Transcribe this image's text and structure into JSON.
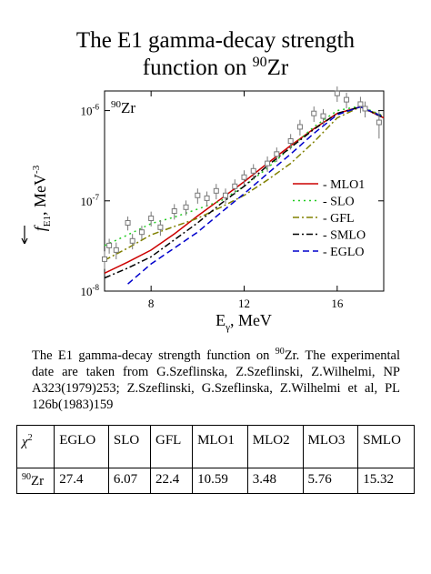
{
  "title": {
    "line1": "The E1 gamma-decay strength",
    "line2": "function on ",
    "sup": "90",
    "tail": "Zr"
  },
  "chart_data": {
    "type": "line",
    "annotation": {
      "sup": "90",
      "text": "Zr"
    },
    "x_label": {
      "text": "E",
      "sub": "γ",
      "tail": ", MeV"
    },
    "y_label": {
      "f": "f",
      "sub": "E1",
      "text": ", MeV",
      "sup": "-3"
    },
    "x": [
      6,
      7,
      8,
      9,
      10,
      11,
      12,
      13,
      14,
      15,
      16,
      17,
      18
    ],
    "series": [
      {
        "name": "- MLO1",
        "color": "#cc0000",
        "linestyle": "solid",
        "values": [
          1.58e-08,
          2.1e-08,
          2.85e-08,
          4.3e-08,
          6.8e-08,
          1.05e-07,
          1.63e-07,
          2.6e-07,
          4.1e-07,
          6.3e-07,
          9.3e-07,
          1.1e-06,
          8.3e-07
        ]
      },
      {
        "name": "- SLO",
        "color": "#22cc22",
        "linestyle": "dotted",
        "values": [
          3.2e-08,
          4.2e-08,
          5.6e-08,
          6.6e-08,
          8.1e-08,
          1e-07,
          1.45e-07,
          2.3e-07,
          3.9e-07,
          6.6e-07,
          1e-06,
          1.12e-06,
          8.7e-07
        ]
      },
      {
        "name": "- GFL",
        "color": "#808000",
        "linestyle": "dashdot",
        "values": [
          2.2e-08,
          3e-08,
          4.2e-08,
          5.2e-08,
          6.4e-08,
          8.5e-08,
          1.15e-07,
          1.7e-07,
          2.6e-07,
          4.5e-07,
          8.3e-07,
          1.1e-06,
          8.6e-07
        ]
      },
      {
        "name": "- SMLO",
        "color": "#000000",
        "linestyle": "dashdot",
        "values": [
          1.4e-08,
          1.8e-08,
          2.4e-08,
          3.7e-08,
          5.7e-08,
          9.3e-08,
          1.45e-07,
          2.45e-07,
          3.9e-07,
          6.2e-07,
          9.3e-07,
          1.1e-06,
          8.3e-07
        ]
      },
      {
        "name": "- EGLO",
        "color": "#0000cc",
        "linestyle": "dashed",
        "values": [
          null,
          1.2e-08,
          2e-08,
          3e-08,
          4.5e-08,
          7.4e-08,
          1.2e-07,
          2e-07,
          3.3e-07,
          5.6e-07,
          9e-07,
          1.1e-06,
          8.5e-07
        ]
      }
    ],
    "points": {
      "color": "#777777",
      "marker": "square",
      "x": [
        6.0,
        6.2,
        6.5,
        7.0,
        7.2,
        7.6,
        8.0,
        8.4,
        9.0,
        9.5,
        10.0,
        10.4,
        10.8,
        11.2,
        11.6,
        12.0,
        12.4,
        13.0,
        13.4,
        14.0,
        14.4,
        15.0,
        15.4,
        16.0,
        16.4,
        17.0,
        17.2,
        17.8
      ],
      "values": [
        2.26e-08,
        3.2e-08,
        2.85e-08,
        5.7e-08,
        3.6e-08,
        4.5e-08,
        6.4e-08,
        5.1e-08,
        7.7e-08,
        8.5e-08,
        1.15e-07,
        1.07e-07,
        1.29e-07,
        1.15e-07,
        1.45e-07,
        1.83e-07,
        2.15e-07,
        2.6e-07,
        3.3e-07,
        4.6e-07,
        6.6e-07,
        9.3e-07,
        8.7e-07,
        1.55e-06,
        1.32e-06,
        1.18e-06,
        1.05e-06,
        7.4e-07
      ],
      "errors": [
        5e-09,
        6e-09,
        6e-09,
        1e-08,
        7e-09,
        8e-09,
        1.2e-08,
        1e-08,
        1.5e-08,
        1.6e-08,
        2.2e-08,
        2e-08,
        2.5e-08,
        2.2e-08,
        2.8e-08,
        3.5e-08,
        4e-08,
        5e-08,
        6e-08,
        9e-08,
        1.3e-07,
        1.8e-07,
        1.7e-07,
        3e-07,
        2.6e-07,
        2.4e-07,
        2.1e-07,
        2.5e-07
      ]
    },
    "xlim": [
      6,
      18
    ],
    "xticks": [
      8,
      12,
      16
    ],
    "ylim": [
      1e-08,
      1.65e-06
    ],
    "log_y": true,
    "yticks": [
      {
        "value": 1e-08,
        "label": "10",
        "sup": "-8"
      },
      {
        "value": 1e-07,
        "label": "10",
        "sup": "-7"
      },
      {
        "value": 1e-06,
        "label": "10",
        "sup": "-6"
      }
    ],
    "legend": "right"
  },
  "caption": {
    "before": "The E1 gamma-decay strength function on ",
    "sup": "90",
    "after": "Zr. The experimental date are taken from G.Szeflinska, Z.Szeflinski, Z.Wilhelmi, NP A323(1979)253; Z.Szeflinski, G.Szeflinska, Z.Wilhelmi et al, PL 126b(1983)159"
  },
  "table": {
    "header": [
      {
        "text": "χ",
        "sup": "2"
      },
      "EGLO",
      "SLO",
      "GFL",
      "MLO1",
      "MLO2",
      "MLO3",
      "SMLO"
    ],
    "rows": [
      [
        {
          "text": "Zr",
          "sup": "90"
        },
        27.4,
        6.07,
        22.4,
        10.59,
        3.48,
        5.76,
        15.32
      ]
    ]
  }
}
